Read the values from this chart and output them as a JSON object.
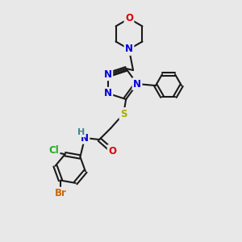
{
  "background_color": "#e8e8e8",
  "bond_color": "#1a1a1a",
  "atom_colors": {
    "N": "#0000dd",
    "O": "#dd0000",
    "S": "#aaaa00",
    "Cl": "#22aa22",
    "Br": "#cc6600",
    "C": "#1a1a1a",
    "H": "#448888"
  },
  "lw": 1.5,
  "fs": 8.5,
  "figsize": [
    3.0,
    3.0
  ],
  "dpi": 100
}
